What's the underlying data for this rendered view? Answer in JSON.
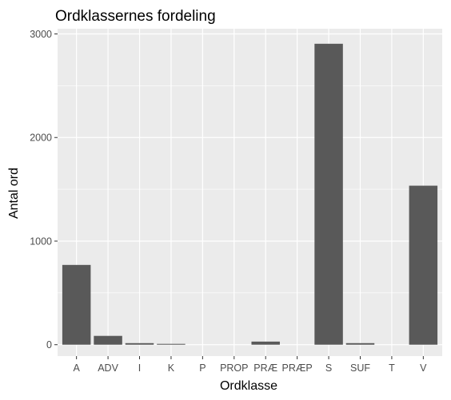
{
  "chart_data": {
    "type": "bar",
    "title": "Ordklassernes fordeling",
    "xlabel": "Ordklasse",
    "ylabel": "Antal ord",
    "categories": [
      "A",
      "ADV",
      "I",
      "K",
      "P",
      "PROP",
      "PRÆ",
      "PRÆP",
      "S",
      "SUF",
      "T",
      "V"
    ],
    "values": [
      770,
      85,
      15,
      8,
      0,
      0,
      30,
      0,
      2905,
      15,
      0,
      1535
    ],
    "ylim": [
      -110,
      3050
    ],
    "yticks": [
      0,
      1000,
      2000,
      3000
    ],
    "grid": true,
    "colors": {
      "bar": "#595959",
      "panel": "#ebebeb",
      "grid": "#ffffff"
    }
  }
}
